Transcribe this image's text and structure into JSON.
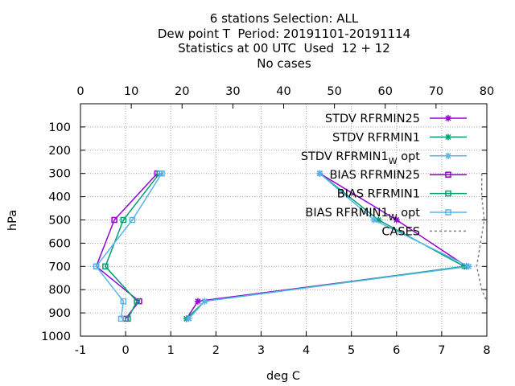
{
  "chart_data": {
    "type": "line",
    "title_lines": [
      "6 stations Selection: ALL",
      "Dew point T  Period: 20191101-20191114",
      "Statistics at 00 UTC  Used  12 + 12",
      "No cases"
    ],
    "xlabel": "deg C",
    "ylabel": "hPa",
    "xlim": [
      -1,
      8
    ],
    "ylim": [
      1000,
      0
    ],
    "x_ticks": [
      "-1",
      "0",
      "1",
      "2",
      "3",
      "4",
      "5",
      "6",
      "7",
      "8"
    ],
    "y_ticks": [
      "100",
      "200",
      "300",
      "400",
      "500",
      "600",
      "700",
      "800",
      "900",
      "1000"
    ],
    "x2lim": [
      0,
      80
    ],
    "x2_ticks": [
      "0",
      "10",
      "20",
      "30",
      "40",
      "50",
      "60",
      "70",
      "80"
    ],
    "grid": true,
    "legend_position": "top-right",
    "series": [
      {
        "name": "STDV RFRMIN25",
        "color": "#9400d3",
        "marker": "star",
        "x": [
          4.3,
          6.0,
          7.55,
          1.6,
          1.35
        ],
        "y": [
          300,
          500,
          700,
          850,
          925
        ]
      },
      {
        "name": "STDV RFRMIN1",
        "color": "#009e73",
        "marker": "star",
        "x": [
          4.3,
          5.6,
          7.5,
          1.75,
          1.35
        ],
        "y": [
          300,
          500,
          700,
          850,
          925
        ]
      },
      {
        "name": "STDV RFRMIN1_W opt",
        "color": "#56b4e9",
        "marker": "star",
        "x": [
          4.3,
          5.5,
          7.6,
          1.75,
          1.4
        ],
        "y": [
          300,
          500,
          700,
          850,
          925
        ]
      },
      {
        "name": "BIAS RFRMIN25",
        "color": "#9400d3",
        "marker": "square",
        "x": [
          0.7,
          -0.25,
          -0.65,
          0.3,
          0.0
        ],
        "y": [
          300,
          500,
          700,
          850,
          925
        ]
      },
      {
        "name": "BIAS RFRMIN1",
        "color": "#009e73",
        "marker": "square",
        "x": [
          0.75,
          -0.05,
          -0.45,
          0.25,
          0.05
        ],
        "y": [
          300,
          500,
          700,
          850,
          925
        ]
      },
      {
        "name": "BIAS RFRMIN1_W opt",
        "color": "#56b4e9",
        "marker": "square",
        "x": [
          0.8,
          0.15,
          -0.65,
          -0.05,
          -0.1
        ],
        "y": [
          300,
          500,
          700,
          850,
          925
        ]
      },
      {
        "name": "CASES",
        "color": "#808080",
        "marker": "none",
        "dashed": true,
        "axis": "x2",
        "x": [
          79,
          79,
          79.5,
          78,
          79,
          80
        ],
        "y": [
          300,
          400,
          500,
          700,
          800,
          850
        ]
      }
    ]
  }
}
